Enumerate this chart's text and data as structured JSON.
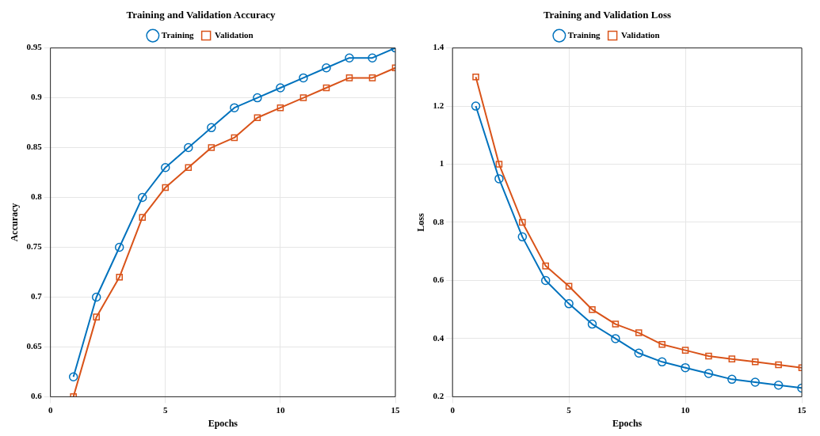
{
  "chart_data": [
    {
      "type": "line",
      "title": "Training and Validation Accuracy",
      "xlabel": "Epochs",
      "ylabel": "Accuracy",
      "x": [
        1,
        2,
        3,
        4,
        5,
        6,
        7,
        8,
        9,
        10,
        11,
        12,
        13,
        14,
        15
      ],
      "xlim": [
        0,
        15
      ],
      "xticks": [
        0,
        5,
        10,
        15
      ],
      "ylim": [
        0.6,
        0.95
      ],
      "yticks": [
        0.6,
        0.65,
        0.7,
        0.75,
        0.8,
        0.85,
        0.9,
        0.95
      ],
      "grid": true,
      "legend": "top",
      "line_style": "solid",
      "series": [
        {
          "name": "Training",
          "color": "#0072bd",
          "marker": "circle",
          "values": [
            0.62,
            0.7,
            0.75,
            0.8,
            0.83,
            0.85,
            0.87,
            0.89,
            0.9,
            0.91,
            0.92,
            0.93,
            0.94,
            0.94,
            0.95
          ]
        },
        {
          "name": "Validation",
          "color": "#d95319",
          "marker": "square",
          "values": [
            0.6,
            0.68,
            0.72,
            0.78,
            0.81,
            0.83,
            0.85,
            0.86,
            0.88,
            0.89,
            0.9,
            0.91,
            0.92,
            0.92,
            0.93
          ]
        }
      ]
    },
    {
      "type": "line",
      "title": "Training and Validation Loss",
      "xlabel": "Epochs",
      "ylabel": "Loss",
      "x": [
        1,
        2,
        3,
        4,
        5,
        6,
        7,
        8,
        9,
        10,
        11,
        12,
        13,
        14,
        15
      ],
      "xlim": [
        0,
        15
      ],
      "xticks": [
        0,
        5,
        10,
        15
      ],
      "ylim": [
        0.2,
        1.4
      ],
      "yticks": [
        0.2,
        0.4,
        0.6,
        0.8,
        1,
        1.2,
        1.4
      ],
      "grid": true,
      "legend": "top",
      "line_style": "solid",
      "series": [
        {
          "name": "Training",
          "color": "#0072bd",
          "marker": "circle",
          "values": [
            1.2,
            0.95,
            0.75,
            0.6,
            0.52,
            0.45,
            0.4,
            0.35,
            0.32,
            0.3,
            0.28,
            0.26,
            0.25,
            0.24,
            0.23
          ]
        },
        {
          "name": "Validation",
          "color": "#d95319",
          "marker": "square",
          "values": [
            1.3,
            1.0,
            0.8,
            0.65,
            0.58,
            0.5,
            0.45,
            0.42,
            0.38,
            0.36,
            0.34,
            0.33,
            0.32,
            0.31,
            0.3
          ]
        }
      ]
    }
  ]
}
